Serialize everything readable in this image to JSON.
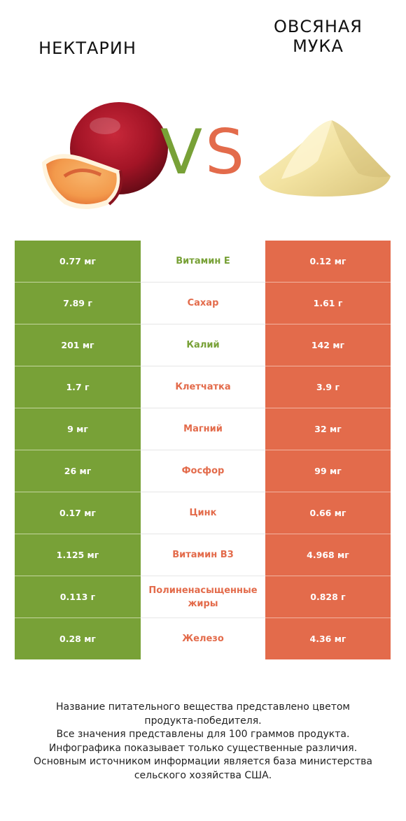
{
  "header": {
    "left_title": "НЕКТАРИН",
    "right_title_line1": "ОВСЯНАЯ",
    "right_title_line2": "МУКА",
    "vs_v": "V",
    "vs_s": "S"
  },
  "colors": {
    "left": "#78a137",
    "right": "#e36b4b"
  },
  "rows": [
    {
      "left": "0.77 мг",
      "name": "Витамин E",
      "right": "0.12 мг",
      "winner": "left"
    },
    {
      "left": "7.89 г",
      "name": "Сахар",
      "right": "1.61 г",
      "winner": "right"
    },
    {
      "left": "201 мг",
      "name": "Калий",
      "right": "142 мг",
      "winner": "left"
    },
    {
      "left": "1.7 г",
      "name": "Клетчатка",
      "right": "3.9 г",
      "winner": "right"
    },
    {
      "left": "9 мг",
      "name": "Магний",
      "right": "32 мг",
      "winner": "right"
    },
    {
      "left": "26 мг",
      "name": "Фосфор",
      "right": "99 мг",
      "winner": "right"
    },
    {
      "left": "0.17 мг",
      "name": "Цинк",
      "right": "0.66 мг",
      "winner": "right"
    },
    {
      "left": "1.125 мг",
      "name": "Витамин B3",
      "right": "4.968 мг",
      "winner": "right"
    },
    {
      "left": "0.113 г",
      "name": "Полиненасыщенные жиры",
      "right": "0.828 г",
      "winner": "right"
    },
    {
      "left": "0.28 мг",
      "name": "Железо",
      "right": "4.36 мг",
      "winner": "right"
    }
  ],
  "footer": {
    "line1": "Название питательного вещества представлено цветом",
    "line2": "продукта-победителя.",
    "line3": "Все значения представлены для 100 граммов продукта.",
    "line4": "Инфографика показывает только существенные различия.",
    "line5": "Основным источником информации является база министерства",
    "line6": "сельского хозяйства США."
  }
}
